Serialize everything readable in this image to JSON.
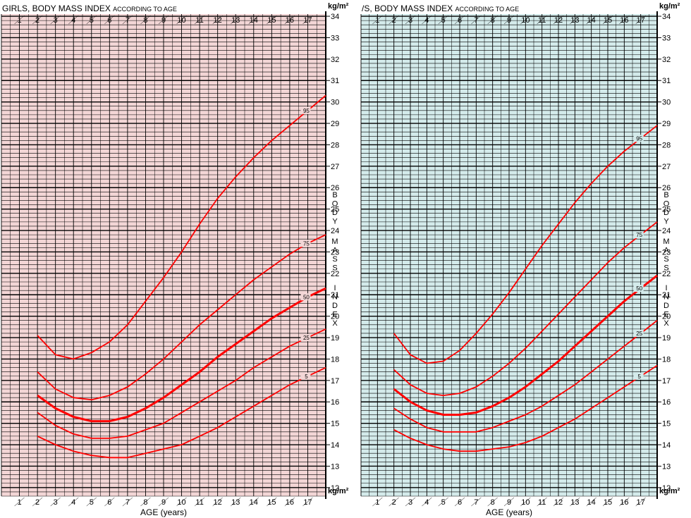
{
  "chart_data": [
    {
      "type": "line",
      "title": "GIRLS, BODY MASS INDEX",
      "subtitle": "ACCORDING TO AGE",
      "xlabel": "AGE (years)",
      "ylabel": "BODY MASS INDEX",
      "unit": "kg/m²",
      "xlim": [
        0,
        18
      ],
      "ylim": [
        11.6,
        34.1
      ],
      "x_ticks": [
        1,
        2,
        3,
        4,
        5,
        6,
        7,
        8,
        9,
        10,
        11,
        12,
        13,
        14,
        15,
        16,
        17
      ],
      "y_ticks": [
        12,
        13,
        14,
        15,
        16,
        17,
        18,
        19,
        20,
        21,
        22,
        23,
        24,
        25,
        26,
        27,
        28,
        29,
        30,
        31,
        32,
        33,
        34
      ],
      "grid": true,
      "background_color": "#f3d6d6",
      "line_color": "#ff0000",
      "series": [
        {
          "name": "95",
          "x": [
            2,
            3,
            4,
            5,
            6,
            7,
            8,
            9,
            10,
            11,
            12,
            13,
            14,
            15,
            16,
            17,
            18
          ],
          "y": [
            19.1,
            18.2,
            18.0,
            18.3,
            18.8,
            19.6,
            20.7,
            21.8,
            23.0,
            24.3,
            25.5,
            26.5,
            27.4,
            28.2,
            28.9,
            29.6,
            30.3
          ]
        },
        {
          "name": "75",
          "x": [
            2,
            3,
            4,
            5,
            6,
            7,
            8,
            9,
            10,
            11,
            12,
            13,
            14,
            15,
            16,
            17,
            18
          ],
          "y": [
            17.4,
            16.6,
            16.2,
            16.1,
            16.3,
            16.7,
            17.3,
            18.0,
            18.8,
            19.6,
            20.3,
            21.0,
            21.7,
            22.3,
            22.9,
            23.4,
            23.8
          ]
        },
        {
          "name": "50",
          "x": [
            2,
            3,
            4,
            5,
            6,
            7,
            8,
            9,
            10,
            11,
            12,
            13,
            14,
            15,
            16,
            17,
            18
          ],
          "y": [
            16.3,
            15.7,
            15.3,
            15.1,
            15.1,
            15.3,
            15.7,
            16.2,
            16.8,
            17.4,
            18.1,
            18.7,
            19.3,
            19.9,
            20.4,
            20.9,
            21.3
          ]
        },
        {
          "name": "25",
          "x": [
            2,
            3,
            4,
            5,
            6,
            7,
            8,
            9,
            10,
            11,
            12,
            13,
            14,
            15,
            16,
            17,
            18
          ],
          "y": [
            15.5,
            14.9,
            14.5,
            14.3,
            14.3,
            14.4,
            14.7,
            15.0,
            15.5,
            16.0,
            16.5,
            17.0,
            17.6,
            18.1,
            18.6,
            19.0,
            19.4
          ]
        },
        {
          "name": "5",
          "x": [
            2,
            3,
            4,
            5,
            6,
            7,
            8,
            9,
            10,
            11,
            12,
            13,
            14,
            15,
            16,
            17,
            18
          ],
          "y": [
            14.4,
            14.0,
            13.7,
            13.5,
            13.4,
            13.4,
            13.6,
            13.8,
            14.0,
            14.4,
            14.8,
            15.3,
            15.8,
            16.3,
            16.8,
            17.2,
            17.6
          ]
        }
      ]
    },
    {
      "type": "line",
      "title": "/S, BODY MASS INDEX",
      "subtitle": "ACCORDING TO AGE",
      "xlabel": "AGE (years)",
      "ylabel": "BODY MASS INDEX",
      "unit": "kg/m²",
      "xlim": [
        0,
        18
      ],
      "ylim": [
        11.6,
        34.1
      ],
      "x_ticks": [
        1,
        2,
        3,
        4,
        5,
        6,
        7,
        8,
        9,
        10,
        11,
        12,
        13,
        14,
        15,
        16,
        17
      ],
      "y_ticks": [
        12,
        13,
        14,
        15,
        16,
        17,
        18,
        19,
        20,
        21,
        22,
        23,
        24,
        25,
        26,
        27,
        28,
        29,
        30,
        31,
        32,
        33,
        34
      ],
      "grid": true,
      "background_color": "#d4ebeb",
      "line_color": "#ff0000",
      "series": [
        {
          "name": "95",
          "x": [
            2,
            3,
            4,
            5,
            6,
            7,
            8,
            9,
            10,
            11,
            12,
            13,
            14,
            15,
            16,
            17,
            18
          ],
          "y": [
            19.2,
            18.2,
            17.8,
            17.9,
            18.4,
            19.2,
            20.1,
            21.1,
            22.2,
            23.3,
            24.3,
            25.3,
            26.2,
            27.0,
            27.7,
            28.3,
            28.9
          ]
        },
        {
          "name": "75",
          "x": [
            2,
            3,
            4,
            5,
            6,
            7,
            8,
            9,
            10,
            11,
            12,
            13,
            14,
            15,
            16,
            17,
            18
          ],
          "y": [
            17.5,
            16.8,
            16.4,
            16.3,
            16.4,
            16.7,
            17.2,
            17.8,
            18.5,
            19.3,
            20.1,
            20.9,
            21.7,
            22.5,
            23.2,
            23.8,
            24.4
          ]
        },
        {
          "name": "50",
          "x": [
            2,
            3,
            4,
            5,
            6,
            7,
            8,
            9,
            10,
            11,
            12,
            13,
            14,
            15,
            16,
            17,
            18
          ],
          "y": [
            16.6,
            16.0,
            15.6,
            15.4,
            15.4,
            15.5,
            15.8,
            16.2,
            16.7,
            17.3,
            17.9,
            18.6,
            19.3,
            20.0,
            20.7,
            21.3,
            21.9
          ]
        },
        {
          "name": "25",
          "x": [
            2,
            3,
            4,
            5,
            6,
            7,
            8,
            9,
            10,
            11,
            12,
            13,
            14,
            15,
            16,
            17,
            18
          ],
          "y": [
            15.7,
            15.2,
            14.8,
            14.6,
            14.6,
            14.6,
            14.8,
            15.1,
            15.4,
            15.8,
            16.3,
            16.8,
            17.4,
            18.0,
            18.6,
            19.2,
            19.8
          ]
        },
        {
          "name": "5",
          "x": [
            2,
            3,
            4,
            5,
            6,
            7,
            8,
            9,
            10,
            11,
            12,
            13,
            14,
            15,
            16,
            17,
            18
          ],
          "y": [
            14.7,
            14.3,
            14.0,
            13.8,
            13.7,
            13.7,
            13.8,
            13.9,
            14.1,
            14.4,
            14.8,
            15.2,
            15.7,
            16.2,
            16.7,
            17.2,
            17.7
          ]
        }
      ]
    }
  ]
}
